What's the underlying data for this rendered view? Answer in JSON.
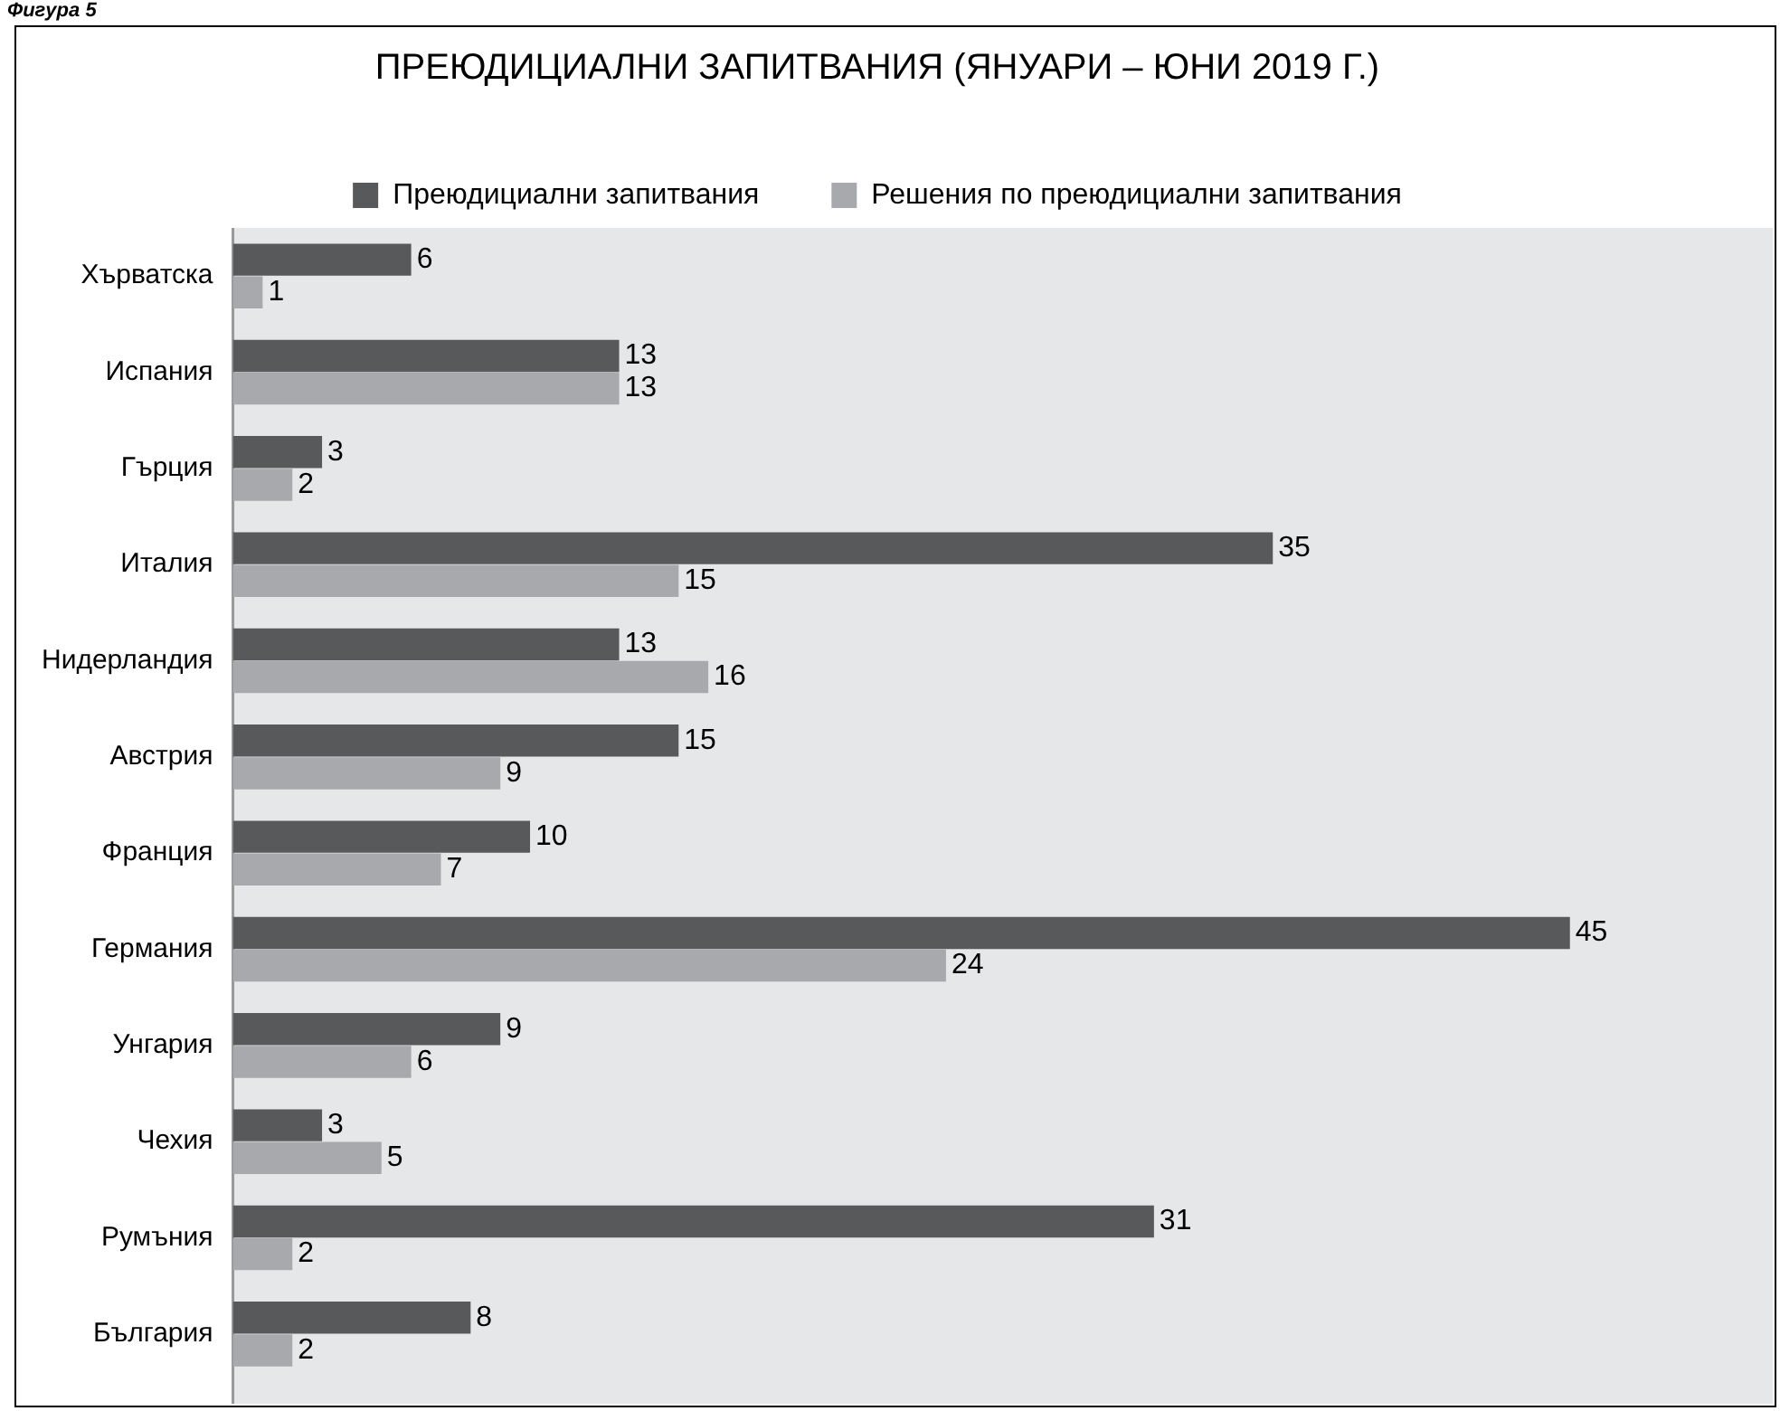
{
  "chart_data": {
    "type": "bar",
    "orientation": "horizontal",
    "title": "ПРЕЮДИЦИАЛНИ ЗАПИТВАНИЯ (ЯНУАРИ – ЮНИ 2019 Г.)",
    "annotations": [
      "Фигура 5"
    ],
    "categories": [
      "Хърватска",
      "Испания",
      "Гърция",
      "Италия",
      "Нидерландия",
      "Австрия",
      "Франция",
      "Германия",
      "Унгария",
      "Чехия",
      "Румъния",
      "България"
    ],
    "series": [
      {
        "name": "Преюдициални запитвания",
        "color": "#58595b",
        "values": [
          6,
          13,
          3,
          35,
          13,
          15,
          10,
          45,
          9,
          3,
          31,
          8
        ]
      },
      {
        "name": "Решения по преюдициални запитвания",
        "color": "#a7a9ac",
        "values": [
          1,
          13,
          2,
          15,
          16,
          9,
          7,
          24,
          6,
          5,
          2,
          2
        ]
      }
    ],
    "data_labels": true,
    "legend": "top"
  }
}
